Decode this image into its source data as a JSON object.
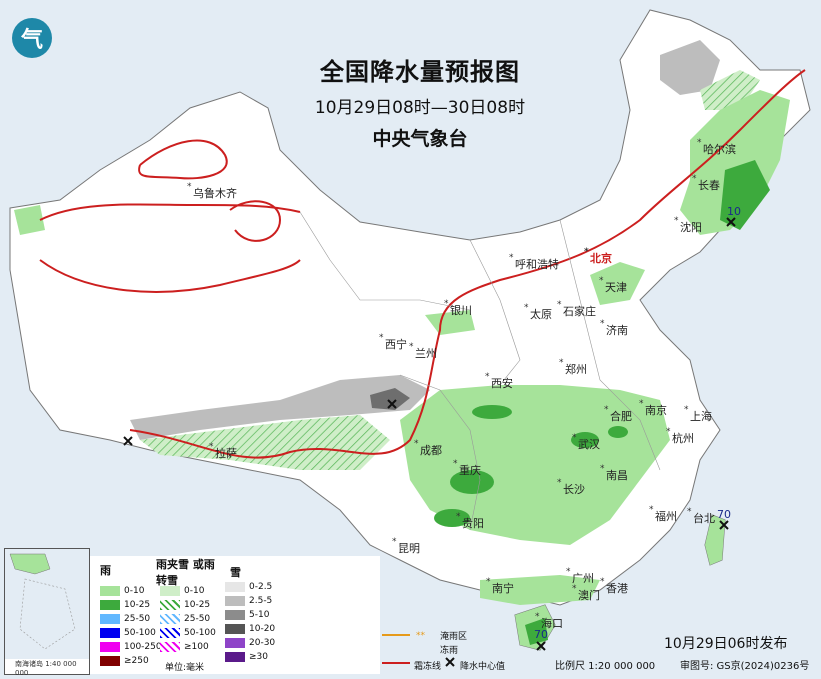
{
  "title": "全国降水量预报图",
  "subtitle": "10月29日08时—30日08时",
  "org": "中央气象台",
  "publish_time": "10月29日06时发布",
  "scale": "比例尺 1:20 000 000",
  "review_no": "审图号: GS京(2024)0236号",
  "cities": [
    "乌鲁木齐",
    "哈尔滨",
    "长春",
    "沈阳",
    "北京",
    "天津",
    "呼和浩特",
    "银川",
    "西宁",
    "兰州",
    "太原",
    "石家庄",
    "济南",
    "郑州",
    "西安",
    "南京",
    "上海",
    "合肥",
    "杭州",
    "武汉",
    "长沙",
    "南昌",
    "成都",
    "重庆",
    "贵阳",
    "拉萨",
    "昆明",
    "南宁",
    "广州",
    "澳门",
    "香港",
    "海口",
    "福州",
    "台北"
  ],
  "values": [
    "10",
    "70",
    "70"
  ],
  "legend": {
    "rain_header": "雨",
    "sleet_header": "雨夹雪\n或雨转雪",
    "snow_header": "雪",
    "rain": [
      {
        "label": "0-10",
        "color": "#a6e39a"
      },
      {
        "label": "10-25",
        "color": "#3daa3d"
      },
      {
        "label": "25-50",
        "color": "#62b8ff"
      },
      {
        "label": "50-100",
        "color": "#0000f0"
      },
      {
        "label": "100-250",
        "color": "#f000f0"
      },
      {
        "label": "≥250",
        "color": "#800000"
      }
    ],
    "sleet": [
      "0-10",
      "10-25",
      "25-50",
      "50-100",
      "≥100"
    ],
    "snow": [
      {
        "label": "0-2.5",
        "color": "#e6e6e6"
      },
      {
        "label": "2.5-5",
        "color": "#bdbdbd"
      },
      {
        "label": "5-10",
        "color": "#8c8c8c"
      },
      {
        "label": "10-20",
        "color": "#555555"
      },
      {
        "label": "20-30",
        "color": "#8e44c8"
      },
      {
        "label": "≥30",
        "color": "#5a1a8a"
      }
    ],
    "unit": "单位:毫米",
    "frozen_rain": "冻雨",
    "freeze_line": "霜冻线",
    "max_center": "降水中心值",
    "flood_area": "淹雨区"
  },
  "inset_label": "南海诸岛\n1:40 000 000",
  "colors": {
    "light_rain": "#a6e39a",
    "mod_rain": "#3daa3d",
    "land": "#ffffff",
    "sea": "#e3ecf4",
    "freeze": "#cc1f1f"
  }
}
